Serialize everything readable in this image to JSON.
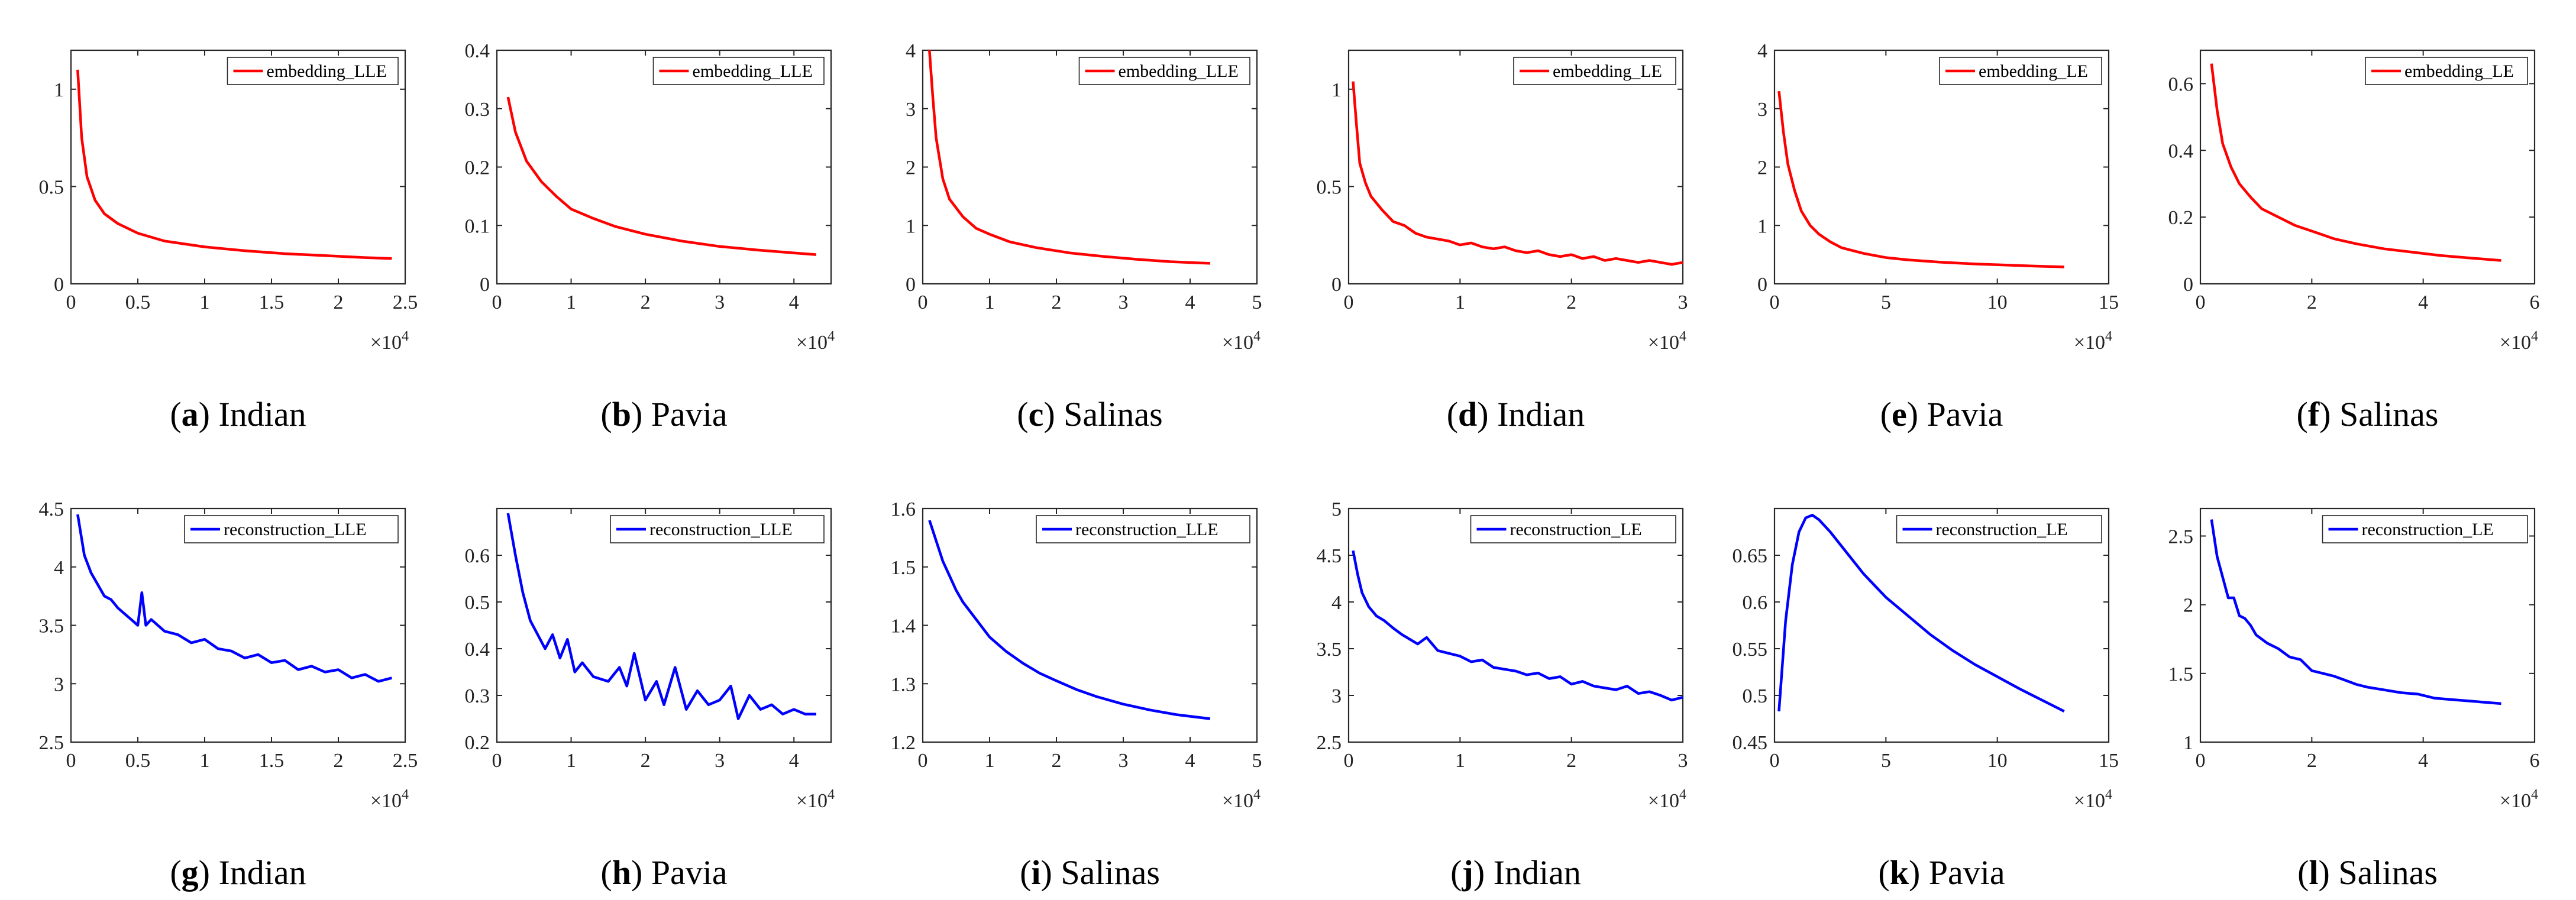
{
  "chart_data": [
    {
      "id": "a",
      "type": "line",
      "color": "#ff0000",
      "legend": "embedding_LLE",
      "caption_letter": "a",
      "caption_text": "Indian",
      "xlim": [
        0,
        25000
      ],
      "ylim": [
        0,
        1.2
      ],
      "xticks": [
        "0",
        "0.5",
        "1",
        "1.5",
        "2",
        "2.5"
      ],
      "xtick_values": [
        0,
        5000,
        10000,
        15000,
        20000,
        25000
      ],
      "yticks": [
        "0",
        "0.5",
        "1"
      ],
      "ytick_values": [
        0,
        0.5,
        1
      ],
      "x_multiplier": "×10",
      "x_multiplier_exp": "4",
      "x": [
        500,
        800,
        1200,
        1800,
        2500,
        3500,
        5000,
        7000,
        10000,
        13000,
        16000,
        19000,
        22000,
        24000
      ],
      "y": [
        1.1,
        0.75,
        0.55,
        0.43,
        0.36,
        0.31,
        0.26,
        0.22,
        0.19,
        0.17,
        0.155,
        0.145,
        0.135,
        0.13
      ]
    },
    {
      "id": "b",
      "type": "line",
      "color": "#ff0000",
      "legend": "embedding_LLE",
      "caption_letter": "b",
      "caption_text": "Pavia",
      "xlim": [
        0,
        45000
      ],
      "ylim": [
        0,
        0.4
      ],
      "xticks": [
        "0",
        "1",
        "2",
        "3",
        "4"
      ],
      "xtick_values": [
        0,
        10000,
        20000,
        30000,
        40000
      ],
      "yticks": [
        "0",
        "0.1",
        "0.2",
        "0.3",
        "0.4"
      ],
      "ytick_values": [
        0,
        0.1,
        0.2,
        0.3,
        0.4
      ],
      "x_multiplier": "×10",
      "x_multiplier_exp": "4",
      "x": [
        1500,
        2500,
        4000,
        6000,
        8000,
        10000,
        13000,
        16000,
        20000,
        25000,
        30000,
        35000,
        40000,
        43000
      ],
      "y": [
        0.32,
        0.26,
        0.21,
        0.175,
        0.15,
        0.128,
        0.112,
        0.098,
        0.085,
        0.073,
        0.064,
        0.058,
        0.053,
        0.05
      ]
    },
    {
      "id": "c",
      "type": "line",
      "color": "#ff0000",
      "legend": "embedding_LLE",
      "caption_letter": "c",
      "caption_text": "Salinas",
      "xlim": [
        0,
        50000
      ],
      "ylim": [
        0,
        4
      ],
      "xticks": [
        "0",
        "1",
        "2",
        "3",
        "4",
        "5"
      ],
      "xtick_values": [
        0,
        10000,
        20000,
        30000,
        40000,
        50000
      ],
      "yticks": [
        "0",
        "1",
        "2",
        "3",
        "4"
      ],
      "ytick_values": [
        0,
        1,
        2,
        3,
        4
      ],
      "x_multiplier": "×10",
      "x_multiplier_exp": "4",
      "x": [
        1000,
        1500,
        2000,
        3000,
        4000,
        6000,
        8000,
        10000,
        13000,
        17000,
        22000,
        27000,
        32000,
        37000,
        43000
      ],
      "y": [
        4.0,
        3.2,
        2.5,
        1.8,
        1.45,
        1.15,
        0.95,
        0.85,
        0.72,
        0.62,
        0.53,
        0.47,
        0.42,
        0.38,
        0.35
      ]
    },
    {
      "id": "d",
      "type": "line",
      "color": "#ff0000",
      "legend": "embedding_LE",
      "caption_letter": "d",
      "caption_text": "Indian",
      "xlim": [
        0,
        30000
      ],
      "ylim": [
        0,
        1.2
      ],
      "xticks": [
        "0",
        "1",
        "2",
        "3"
      ],
      "xtick_values": [
        0,
        10000,
        20000,
        30000
      ],
      "yticks": [
        "0",
        "0.5",
        "1"
      ],
      "ytick_values": [
        0,
        0.5,
        1
      ],
      "x_multiplier": "×10",
      "x_multiplier_exp": "4",
      "x": [
        400,
        700,
        1000,
        1500,
        2000,
        3000,
        4000,
        5000,
        6000,
        7000,
        8000,
        9000,
        10000,
        11000,
        12000,
        13000,
        14000,
        15000,
        16000,
        17000,
        18000,
        19000,
        20000,
        21000,
        22000,
        23000,
        24000,
        25000,
        26000,
        27000,
        28000,
        29000,
        30000
      ],
      "y": [
        1.04,
        0.82,
        0.62,
        0.52,
        0.45,
        0.38,
        0.32,
        0.3,
        0.26,
        0.24,
        0.23,
        0.22,
        0.2,
        0.21,
        0.19,
        0.18,
        0.19,
        0.17,
        0.16,
        0.17,
        0.15,
        0.14,
        0.15,
        0.13,
        0.14,
        0.12,
        0.13,
        0.12,
        0.11,
        0.12,
        0.11,
        0.1,
        0.11
      ]
    },
    {
      "id": "e",
      "type": "line",
      "color": "#ff0000",
      "legend": "embedding_LE",
      "caption_letter": "e",
      "caption_text": "Pavia",
      "xlim": [
        0,
        150000
      ],
      "ylim": [
        0,
        4
      ],
      "xticks": [
        "0",
        "5",
        "10",
        "15"
      ],
      "xtick_values": [
        0,
        50000,
        100000,
        150000
      ],
      "yticks": [
        "0",
        "1",
        "2",
        "3",
        "4"
      ],
      "ytick_values": [
        0,
        1,
        2,
        3,
        4
      ],
      "x_multiplier": "×10",
      "x_multiplier_exp": "4",
      "x": [
        2000,
        4000,
        6000,
        9000,
        12000,
        16000,
        20000,
        25000,
        30000,
        40000,
        50000,
        60000,
        75000,
        90000,
        105000,
        120000,
        130000
      ],
      "y": [
        3.3,
        2.6,
        2.05,
        1.6,
        1.25,
        1.0,
        0.85,
        0.72,
        0.62,
        0.52,
        0.45,
        0.41,
        0.37,
        0.34,
        0.32,
        0.3,
        0.29
      ]
    },
    {
      "id": "f",
      "type": "line",
      "color": "#ff0000",
      "legend": "embedding_LE",
      "caption_letter": "f",
      "caption_text": "Salinas",
      "xlim": [
        0,
        60000
      ],
      "ylim": [
        0,
        0.7
      ],
      "xticks": [
        "0",
        "2",
        "4",
        "6"
      ],
      "xtick_values": [
        0,
        20000,
        40000,
        60000
      ],
      "yticks": [
        "0",
        "0.2",
        "0.4",
        "0.6"
      ],
      "ytick_values": [
        0,
        0.2,
        0.4,
        0.6
      ],
      "x_multiplier": "×10",
      "x_multiplier_exp": "4",
      "x": [
        2000,
        3000,
        4000,
        5500,
        7000,
        9000,
        11000,
        14000,
        17000,
        20000,
        24000,
        28000,
        33000,
        38000,
        43000,
        48000,
        54000
      ],
      "y": [
        0.66,
        0.52,
        0.42,
        0.35,
        0.3,
        0.26,
        0.225,
        0.2,
        0.175,
        0.158,
        0.135,
        0.12,
        0.105,
        0.095,
        0.085,
        0.078,
        0.07
      ]
    },
    {
      "id": "g",
      "type": "line",
      "color": "#0000ff",
      "legend": "reconstruction_LLE",
      "caption_letter": "g",
      "caption_text": "Indian",
      "xlim": [
        0,
        25000
      ],
      "ylim": [
        2.5,
        4.5
      ],
      "xticks": [
        "0",
        "0.5",
        "1",
        "1.5",
        "2",
        "2.5"
      ],
      "xtick_values": [
        0,
        5000,
        10000,
        15000,
        20000,
        25000
      ],
      "yticks": [
        "2.5",
        "3",
        "3.5",
        "4",
        "4.5"
      ],
      "ytick_values": [
        2.5,
        3,
        3.5,
        4,
        4.5
      ],
      "x_multiplier": "×10",
      "x_multiplier_exp": "4",
      "x": [
        500,
        1000,
        1500,
        2000,
        2500,
        3000,
        3500,
        4000,
        4500,
        5000,
        5300,
        5600,
        6000,
        7000,
        8000,
        9000,
        10000,
        11000,
        12000,
        13000,
        14000,
        15000,
        16000,
        17000,
        18000,
        19000,
        20000,
        21000,
        22000,
        23000,
        24000
      ],
      "y": [
        4.45,
        4.1,
        3.95,
        3.85,
        3.75,
        3.72,
        3.65,
        3.6,
        3.55,
        3.5,
        3.78,
        3.5,
        3.55,
        3.45,
        3.42,
        3.35,
        3.38,
        3.3,
        3.28,
        3.22,
        3.25,
        3.18,
        3.2,
        3.12,
        3.15,
        3.1,
        3.12,
        3.05,
        3.08,
        3.02,
        3.05
      ]
    },
    {
      "id": "h",
      "type": "line",
      "color": "#0000ff",
      "legend": "reconstruction_LLE",
      "caption_letter": "h",
      "caption_text": "Pavia",
      "xlim": [
        0,
        45000
      ],
      "ylim": [
        0.2,
        0.7
      ],
      "xticks": [
        "0",
        "1",
        "2",
        "3",
        "4"
      ],
      "xtick_values": [
        0,
        10000,
        20000,
        30000,
        40000
      ],
      "yticks": [
        "0.2",
        "0.3",
        "0.4",
        "0.5",
        "0.6"
      ],
      "ytick_values": [
        0.2,
        0.3,
        0.4,
        0.5,
        0.6
      ],
      "x_multiplier": "×10",
      "x_multiplier_exp": "4",
      "x": [
        1500,
        2500,
        3500,
        4500,
        5500,
        6500,
        7500,
        8500,
        9500,
        10500,
        11500,
        13000,
        15000,
        16500,
        17500,
        18500,
        20000,
        21500,
        22500,
        24000,
        25500,
        27000,
        28500,
        30000,
        31500,
        32500,
        34000,
        35500,
        37000,
        38500,
        40000,
        41500,
        43000
      ],
      "y": [
        0.69,
        0.6,
        0.52,
        0.46,
        0.43,
        0.4,
        0.43,
        0.38,
        0.42,
        0.35,
        0.37,
        0.34,
        0.33,
        0.36,
        0.32,
        0.39,
        0.29,
        0.33,
        0.28,
        0.36,
        0.27,
        0.31,
        0.28,
        0.29,
        0.32,
        0.25,
        0.3,
        0.27,
        0.28,
        0.26,
        0.27,
        0.26,
        0.26
      ]
    },
    {
      "id": "i",
      "type": "line",
      "color": "#0000ff",
      "legend": "reconstruction_LLE",
      "caption_letter": "i",
      "caption_text": "Salinas",
      "xlim": [
        0,
        50000
      ],
      "ylim": [
        1.2,
        1.6
      ],
      "xticks": [
        "0",
        "1",
        "2",
        "3",
        "4",
        "5"
      ],
      "xtick_values": [
        0,
        10000,
        20000,
        30000,
        40000,
        50000
      ],
      "yticks": [
        "1.2",
        "1.3",
        "1.4",
        "1.5",
        "1.6"
      ],
      "ytick_values": [
        1.2,
        1.3,
        1.4,
        1.5,
        1.6
      ],
      "x_multiplier": "×10",
      "x_multiplier_exp": "4",
      "x": [
        1000,
        2000,
        3000,
        4000,
        5000,
        6000,
        8000,
        10000,
        12500,
        15000,
        17500,
        20000,
        23000,
        26000,
        30000,
        34000,
        38000,
        43000
      ],
      "y": [
        1.58,
        1.545,
        1.51,
        1.485,
        1.46,
        1.44,
        1.41,
        1.38,
        1.355,
        1.335,
        1.318,
        1.305,
        1.29,
        1.278,
        1.265,
        1.255,
        1.247,
        1.24
      ]
    },
    {
      "id": "j",
      "type": "line",
      "color": "#0000ff",
      "legend": "reconstruction_LE",
      "caption_letter": "j",
      "caption_text": "Indian",
      "xlim": [
        0,
        30000
      ],
      "ylim": [
        2.5,
        5
      ],
      "xticks": [
        "0",
        "1",
        "2",
        "3"
      ],
      "xtick_values": [
        0,
        10000,
        20000,
        30000
      ],
      "yticks": [
        "2.5",
        "3",
        "3.5",
        "4",
        "4.5",
        "5"
      ],
      "ytick_values": [
        2.5,
        3,
        3.5,
        4,
        4.5,
        5
      ],
      "x_multiplier": "×10",
      "x_multiplier_exp": "4",
      "x": [
        400,
        800,
        1200,
        1800,
        2500,
        3200,
        4000,
        4800,
        5500,
        6200,
        7000,
        8000,
        9000,
        10000,
        11000,
        12000,
        13000,
        14000,
        15000,
        16000,
        17000,
        18000,
        19000,
        20000,
        21000,
        22000,
        23000,
        24000,
        25000,
        26000,
        27000,
        28000,
        29000,
        30000
      ],
      "y": [
        4.55,
        4.3,
        4.1,
        3.95,
        3.85,
        3.8,
        3.72,
        3.65,
        3.6,
        3.55,
        3.62,
        3.48,
        3.45,
        3.42,
        3.36,
        3.38,
        3.3,
        3.28,
        3.26,
        3.22,
        3.24,
        3.18,
        3.2,
        3.12,
        3.15,
        3.1,
        3.08,
        3.06,
        3.1,
        3.02,
        3.04,
        3.0,
        2.95,
        2.98
      ]
    },
    {
      "id": "k",
      "type": "line",
      "color": "#0000ff",
      "legend": "reconstruction_LE",
      "caption_letter": "k",
      "caption_text": "Pavia",
      "xlim": [
        0,
        150000
      ],
      "ylim": [
        0.45,
        0.7
      ],
      "xticks": [
        "0",
        "5",
        "10",
        "15"
      ],
      "xtick_values": [
        0,
        50000,
        100000,
        150000
      ],
      "yticks": [
        "0.45",
        "0.5",
        "0.55",
        "0.6",
        "0.65"
      ],
      "ytick_values": [
        0.45,
        0.5,
        0.55,
        0.6,
        0.65
      ],
      "x_multiplier": "×10",
      "x_multiplier_exp": "4",
      "x": [
        2000,
        5000,
        8000,
        11000,
        14000,
        17000,
        20000,
        25000,
        30000,
        40000,
        50000,
        60000,
        70000,
        80000,
        90000,
        100000,
        110000,
        120000,
        130000
      ],
      "y": [
        0.483,
        0.58,
        0.64,
        0.675,
        0.69,
        0.693,
        0.688,
        0.675,
        0.66,
        0.63,
        0.605,
        0.585,
        0.565,
        0.548,
        0.533,
        0.52,
        0.507,
        0.495,
        0.483
      ]
    },
    {
      "id": "l",
      "type": "line",
      "color": "#0000ff",
      "legend": "reconstruction_LE",
      "caption_letter": "l",
      "caption_text": "Salinas",
      "xlim": [
        0,
        60000
      ],
      "ylim": [
        1,
        2.7
      ],
      "xticks": [
        "0",
        "2",
        "4",
        "6"
      ],
      "xtick_values": [
        0,
        20000,
        40000,
        60000
      ],
      "yticks": [
        "1",
        "1.5",
        "2",
        "2.5"
      ],
      "ytick_values": [
        1,
        1.5,
        2,
        2.5
      ],
      "x_multiplier": "×10",
      "x_multiplier_exp": "4",
      "x": [
        2000,
        3000,
        4000,
        5000,
        6000,
        7000,
        8000,
        9000,
        10000,
        11000,
        12000,
        14000,
        16000,
        18000,
        20000,
        22000,
        24000,
        26000,
        28000,
        30000,
        33000,
        36000,
        39000,
        42000,
        45000,
        48000,
        51000,
        54000
      ],
      "y": [
        2.62,
        2.35,
        2.2,
        2.05,
        2.05,
        1.92,
        1.9,
        1.85,
        1.78,
        1.75,
        1.72,
        1.68,
        1.62,
        1.6,
        1.52,
        1.5,
        1.48,
        1.45,
        1.42,
        1.4,
        1.38,
        1.36,
        1.35,
        1.32,
        1.31,
        1.3,
        1.29,
        1.28
      ]
    }
  ]
}
